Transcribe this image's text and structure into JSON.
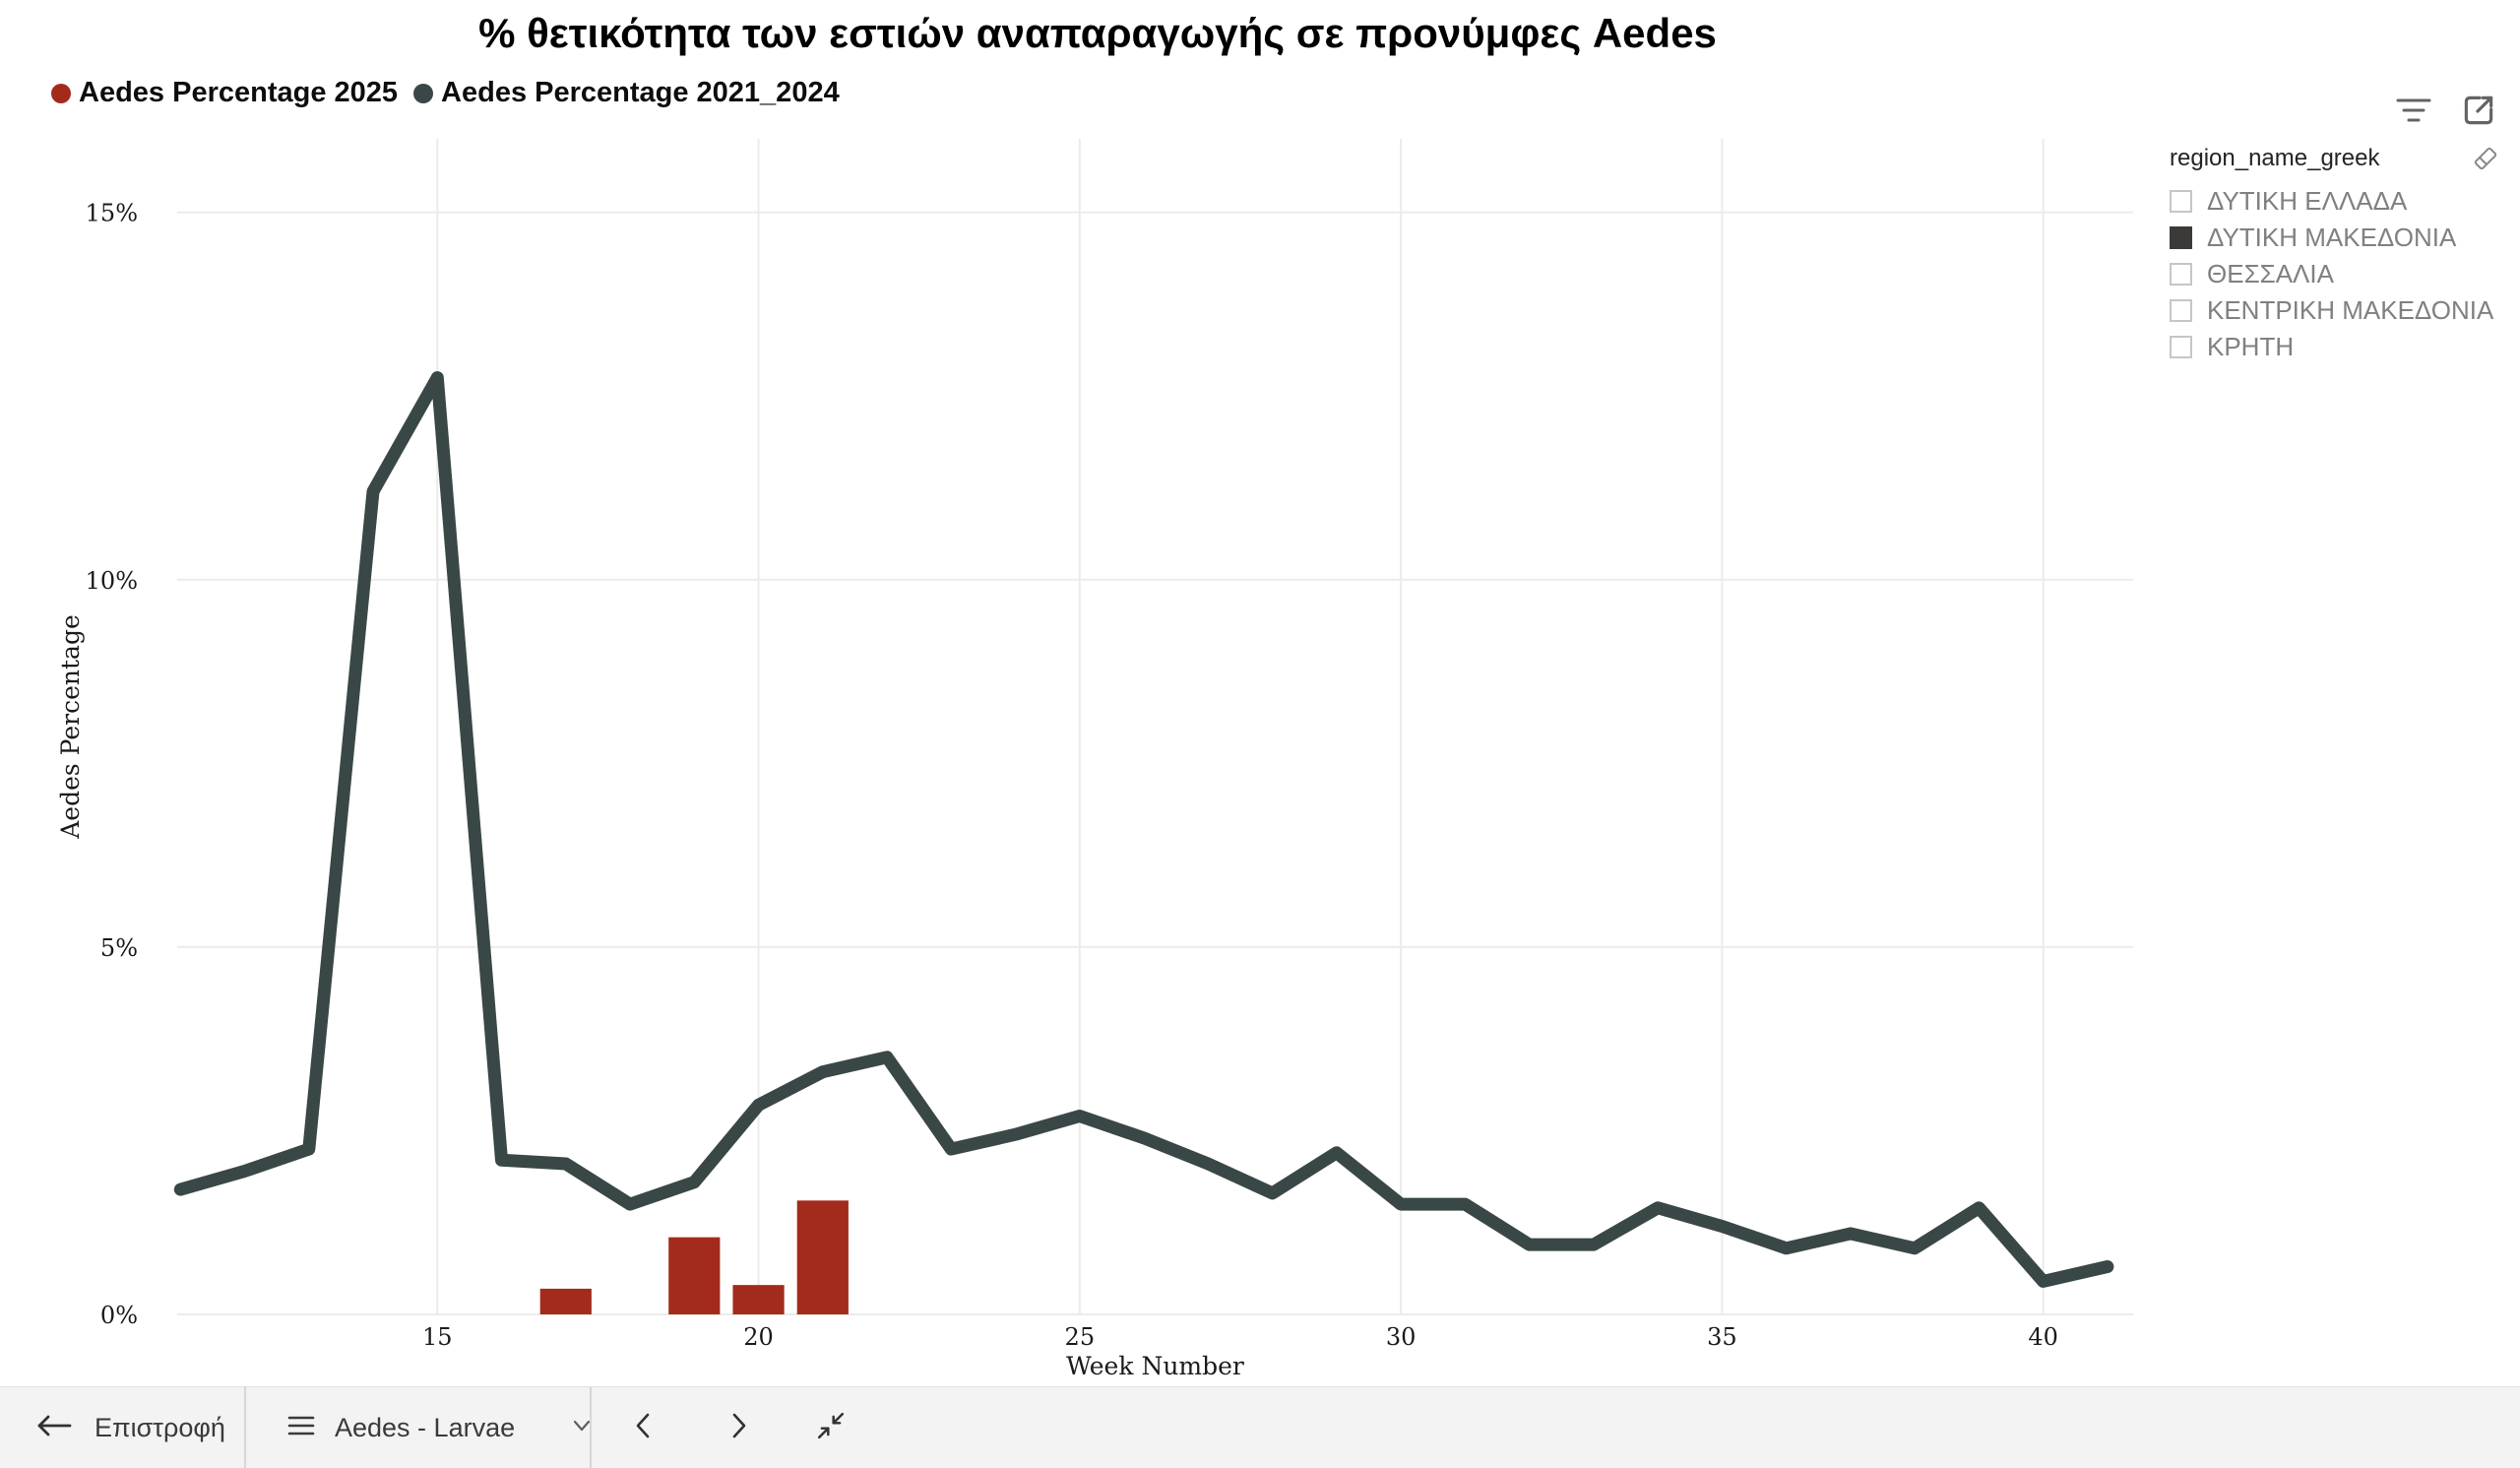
{
  "header": {
    "title": "% θετικότητα των εστιών αναπαραγωγής σε προνύμφες Aedes"
  },
  "legend": {
    "items": [
      {
        "label": "Aedes Percentage 2025",
        "color": "#a32b1b"
      },
      {
        "label": "Aedes Percentage 2021_2024",
        "color": "#3a4747"
      }
    ]
  },
  "visual_header": {
    "icons": [
      "filter-icon",
      "popout-icon"
    ]
  },
  "chart_data": {
    "type": "line+bar",
    "title": "% θετικότητα των εστιών αναπαραγωγής σε προνύμφες Aedes",
    "xlabel": "Week Number",
    "ylabel": "Aedes Percentage",
    "xlim": [
      10.95,
      41.4
    ],
    "ylim": [
      0,
      16
    ],
    "x_ticks": [
      15,
      20,
      25,
      30,
      35,
      40
    ],
    "y_ticks": [
      0,
      5,
      10,
      15
    ],
    "y_tick_suffix": "%",
    "grid": true,
    "grid_color": "#ebebeb",
    "series": [
      {
        "name": "Aedes Percentage 2025",
        "type": "bar",
        "color": "#a32b1b",
        "bar_width_weeks": 0.8,
        "x": [
          17,
          19,
          20,
          21
        ],
        "y": [
          0.35,
          1.05,
          0.4,
          1.55
        ]
      },
      {
        "name": "Aedes Percentage 2021_2024",
        "type": "line",
        "color": "#3a4747",
        "line_width": 13,
        "x": [
          11,
          12,
          13,
          14,
          15,
          16,
          17,
          18,
          19,
          20,
          21,
          22,
          23,
          24,
          25,
          26,
          27,
          28,
          29,
          30,
          31,
          32,
          33,
          34,
          35,
          36,
          37,
          38,
          39,
          40,
          41
        ],
        "y": [
          1.7,
          1.95,
          2.25,
          11.2,
          12.75,
          2.1,
          2.05,
          1.5,
          1.8,
          2.85,
          3.3,
          3.5,
          2.25,
          2.45,
          2.7,
          2.4,
          2.05,
          1.65,
          2.2,
          1.5,
          1.5,
          0.95,
          0.95,
          1.45,
          1.2,
          0.9,
          1.1,
          0.9,
          1.45,
          0.45,
          0.65
        ]
      }
    ]
  },
  "slicer": {
    "title": "region_name_greek",
    "items": [
      {
        "label": "ΔΥΤΙΚΗ ΕΛΛΑΔΑ",
        "checked": false
      },
      {
        "label": "ΔΥΤΙΚΗ ΜΑΚΕΔΟΝΙΑ",
        "checked": true
      },
      {
        "label": "ΘΕΣΣΑΛΙΑ",
        "checked": false
      },
      {
        "label": "ΚΕΝΤΡΙΚΗ ΜΑΚΕΔΟΝΙΑ",
        "checked": false
      },
      {
        "label": "ΚΡΗΤΗ",
        "checked": false
      }
    ]
  },
  "bottom_bar": {
    "back_label": "Επιστροφή",
    "page_label": "Aedes - Larvae"
  }
}
